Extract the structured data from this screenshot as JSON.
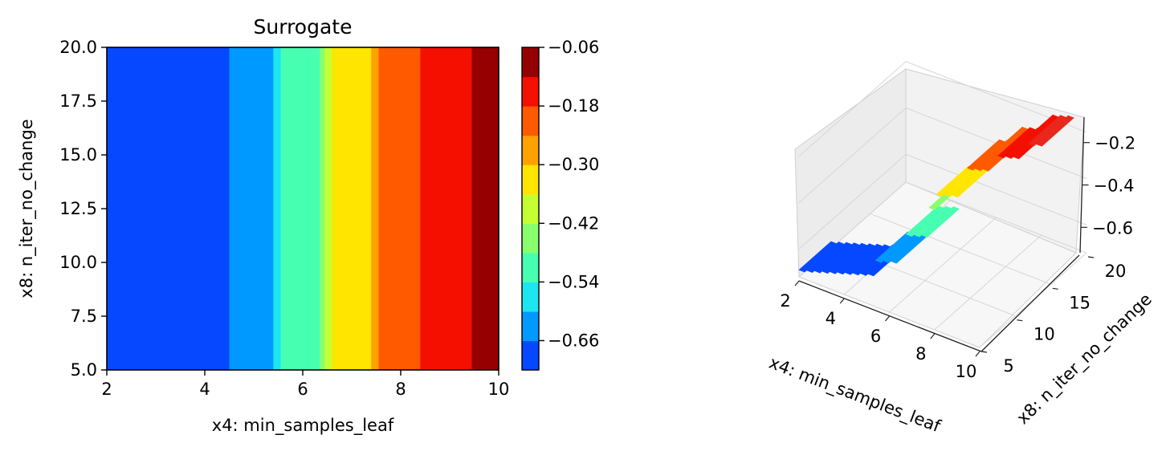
{
  "chart_data": [
    {
      "type": "heatmap",
      "subtype": "filled-contour",
      "title": "Surrogate",
      "xlabel": "x4: min_samples_leaf",
      "ylabel": "x8: n_iter_no_change",
      "xlim": [
        2,
        10
      ],
      "ylim": [
        5,
        20
      ],
      "xticks": [
        "2",
        "4",
        "6",
        "8",
        "10"
      ],
      "yticks": [
        "5.0",
        "7.5",
        "10.0",
        "12.5",
        "15.0",
        "17.5",
        "20.0"
      ],
      "colormap": "jet",
      "bands": [
        {
          "x0": 2.0,
          "x1": 4.5,
          "color": "#0548ff"
        },
        {
          "x0": 4.5,
          "x1": 5.4,
          "color": "#0099ff"
        },
        {
          "x0": 5.4,
          "x1": 5.55,
          "color": "#1ce6f0"
        },
        {
          "x0": 5.55,
          "x1": 6.35,
          "color": "#47ffb1"
        },
        {
          "x0": 6.35,
          "x1": 6.45,
          "color": "#89ff6e"
        },
        {
          "x0": 6.45,
          "x1": 6.6,
          "color": "#c6ff31"
        },
        {
          "x0": 6.6,
          "x1": 7.4,
          "color": "#ffe500"
        },
        {
          "x0": 7.4,
          "x1": 7.55,
          "color": "#ffa100"
        },
        {
          "x0": 7.55,
          "x1": 8.4,
          "color": "#ff5a00"
        },
        {
          "x0": 8.4,
          "x1": 9.45,
          "color": "#f50f00"
        },
        {
          "x0": 9.45,
          "x1": 10.0,
          "color": "#960000"
        }
      ],
      "colorbar": {
        "levels": [
          -0.72,
          -0.66,
          -0.6,
          -0.54,
          -0.48,
          -0.42,
          -0.36,
          -0.3,
          -0.24,
          -0.18,
          -0.12,
          -0.06
        ],
        "colors": [
          "#0548ff",
          "#0099ff",
          "#1ce6f0",
          "#47ffb1",
          "#89ff6e",
          "#c6ff31",
          "#ffe500",
          "#ffa100",
          "#ff5a00",
          "#f50f00",
          "#960000"
        ],
        "ticks": [
          -0.66,
          -0.54,
          -0.42,
          -0.3,
          -0.18,
          -0.06
        ],
        "ticklabels": [
          "−0.66",
          "−0.54",
          "−0.42",
          "−0.30",
          "−0.18",
          "−0.06"
        ]
      }
    },
    {
      "type": "surface3d",
      "xlabel": "x4: min_samples_leaf",
      "ylabel": "x8: n_iter_no_change",
      "xticks": [
        "2",
        "4",
        "6",
        "8",
        "10"
      ],
      "yticks": [
        "5",
        "10",
        "15",
        "20"
      ],
      "zticks": [
        "−0.6",
        "−0.4",
        "−0.2"
      ],
      "xlim": [
        2,
        10
      ],
      "ylim": [
        5,
        20
      ],
      "zlim": [
        -0.72,
        -0.08
      ],
      "colormap": "jet"
    }
  ]
}
